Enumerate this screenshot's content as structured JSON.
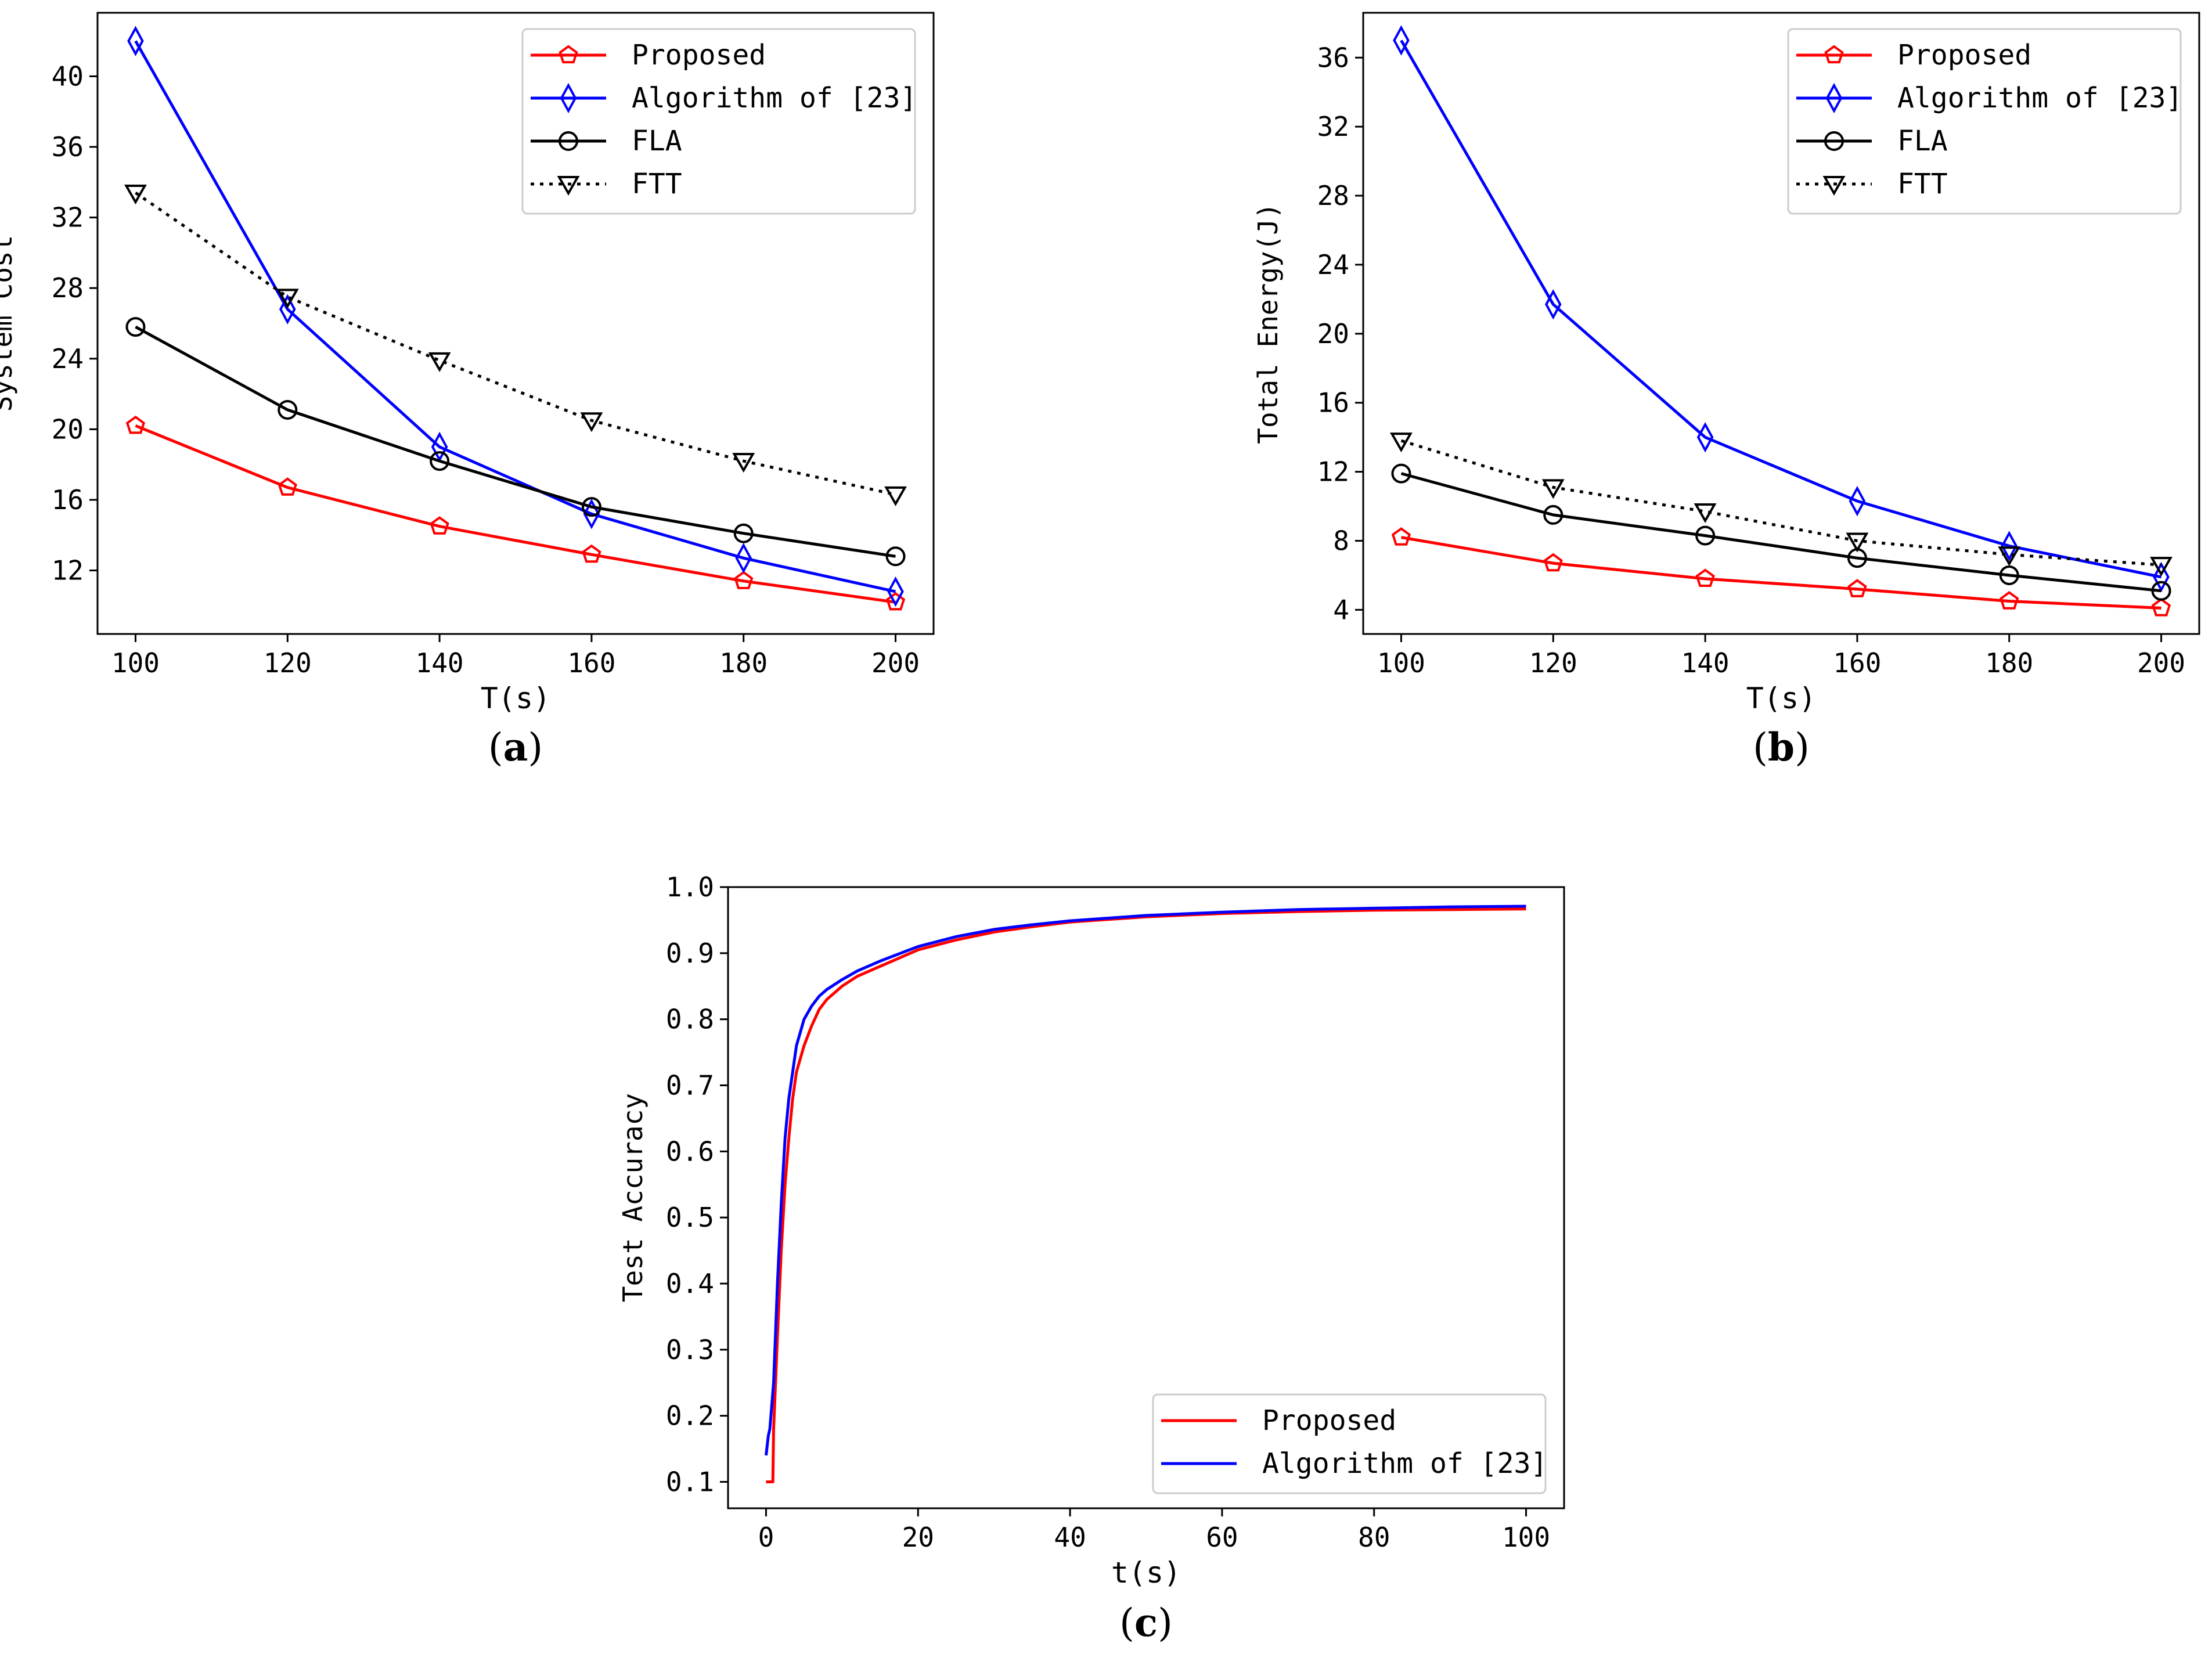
{
  "colors": {
    "Proposed": "#ff0000",
    "Algorithm of [23]": "#0000ff",
    "FLA": "#000000",
    "FTT": "#000000"
  },
  "chart_data": [
    {
      "id": "a",
      "type": "line",
      "caption": "a",
      "xlabel": "T(s)",
      "ylabel": "System Cost",
      "x": [
        100,
        120,
        140,
        160,
        180,
        200
      ],
      "xlim": [
        95,
        205
      ],
      "ylim": [
        8.4,
        43.6
      ],
      "xticks": [
        100,
        120,
        140,
        160,
        180,
        200
      ],
      "yticks": [
        12,
        16,
        20,
        24,
        28,
        32,
        36,
        40
      ],
      "legend_position": "top-right",
      "series": [
        {
          "name": "Proposed",
          "marker": "pentagon",
          "style": "solid",
          "values": [
            20.2,
            16.7,
            14.5,
            12.9,
            11.4,
            10.2
          ]
        },
        {
          "name": "Algorithm of [23]",
          "marker": "diamond",
          "style": "solid",
          "values": [
            42.0,
            26.8,
            19.0,
            15.2,
            12.7,
            10.8
          ]
        },
        {
          "name": "FLA",
          "marker": "circle",
          "style": "solid",
          "values": [
            25.8,
            21.1,
            18.2,
            15.6,
            14.1,
            12.8
          ]
        },
        {
          "name": "FTT",
          "marker": "triangle-down",
          "style": "dotted",
          "values": [
            33.4,
            27.5,
            23.9,
            20.5,
            18.2,
            16.3
          ]
        }
      ]
    },
    {
      "id": "b",
      "type": "line",
      "caption": "b",
      "xlabel": "T(s)",
      "ylabel": "Total Energy(J)",
      "x": [
        100,
        120,
        140,
        160,
        180,
        200
      ],
      "xlim": [
        95,
        205
      ],
      "ylim": [
        2.6,
        38.6
      ],
      "xticks": [
        100,
        120,
        140,
        160,
        180,
        200
      ],
      "yticks": [
        4,
        8,
        12,
        16,
        20,
        24,
        28,
        32,
        36
      ],
      "legend_position": "top-right",
      "series": [
        {
          "name": "Proposed",
          "marker": "pentagon",
          "style": "solid",
          "values": [
            8.2,
            6.7,
            5.8,
            5.2,
            4.5,
            4.1
          ]
        },
        {
          "name": "Algorithm of [23]",
          "marker": "diamond",
          "style": "solid",
          "values": [
            37.0,
            21.7,
            14.0,
            10.3,
            7.7,
            5.9
          ]
        },
        {
          "name": "FLA",
          "marker": "circle",
          "style": "solid",
          "values": [
            11.9,
            9.5,
            8.3,
            7.0,
            6.0,
            5.1
          ]
        },
        {
          "name": "FTT",
          "marker": "triangle-down",
          "style": "dotted",
          "values": [
            13.8,
            11.1,
            9.7,
            8.0,
            7.2,
            6.6
          ]
        }
      ]
    },
    {
      "id": "c",
      "type": "line",
      "caption": "c",
      "xlabel": "t(s)",
      "ylabel": "Test Accuracy",
      "xlim": [
        -5,
        105
      ],
      "ylim": [
        0.06,
        1.0
      ],
      "xticks": [
        0,
        20,
        40,
        60,
        80,
        100
      ],
      "yticks": [
        0.1,
        0.2,
        0.3,
        0.4,
        0.5,
        0.6,
        0.7,
        0.8,
        0.9,
        1.0
      ],
      "legend_position": "bottom-right",
      "series": [
        {
          "name": "Proposed",
          "marker": "none",
          "style": "solid",
          "x": [
            0,
            0.9,
            1.0,
            1.5,
            2.0,
            2.5,
            3.0,
            3.5,
            4.0,
            5.0,
            6.0,
            7.0,
            8.0,
            10,
            12,
            15,
            20,
            25,
            30,
            35,
            40,
            50,
            60,
            70,
            80,
            90,
            100
          ],
          "values": [
            0.1,
            0.1,
            0.18,
            0.32,
            0.45,
            0.55,
            0.62,
            0.68,
            0.72,
            0.76,
            0.79,
            0.815,
            0.83,
            0.85,
            0.865,
            0.88,
            0.905,
            0.92,
            0.932,
            0.94,
            0.947,
            0.955,
            0.96,
            0.963,
            0.965,
            0.966,
            0.967
          ]
        },
        {
          "name": "Algorithm of [23]",
          "marker": "none",
          "style": "solid",
          "x": [
            0,
            0.3,
            0.5,
            1.0,
            1.5,
            2.0,
            2.5,
            3.0,
            3.5,
            4.0,
            5.0,
            6.0,
            7.0,
            8.0,
            10,
            12,
            15,
            20,
            25,
            30,
            35,
            40,
            50,
            60,
            70,
            80,
            90,
            100
          ],
          "values": [
            0.14,
            0.17,
            0.18,
            0.25,
            0.4,
            0.52,
            0.62,
            0.68,
            0.72,
            0.76,
            0.8,
            0.82,
            0.835,
            0.845,
            0.86,
            0.873,
            0.888,
            0.91,
            0.925,
            0.936,
            0.943,
            0.949,
            0.957,
            0.962,
            0.966,
            0.968,
            0.97,
            0.971
          ]
        }
      ]
    }
  ]
}
